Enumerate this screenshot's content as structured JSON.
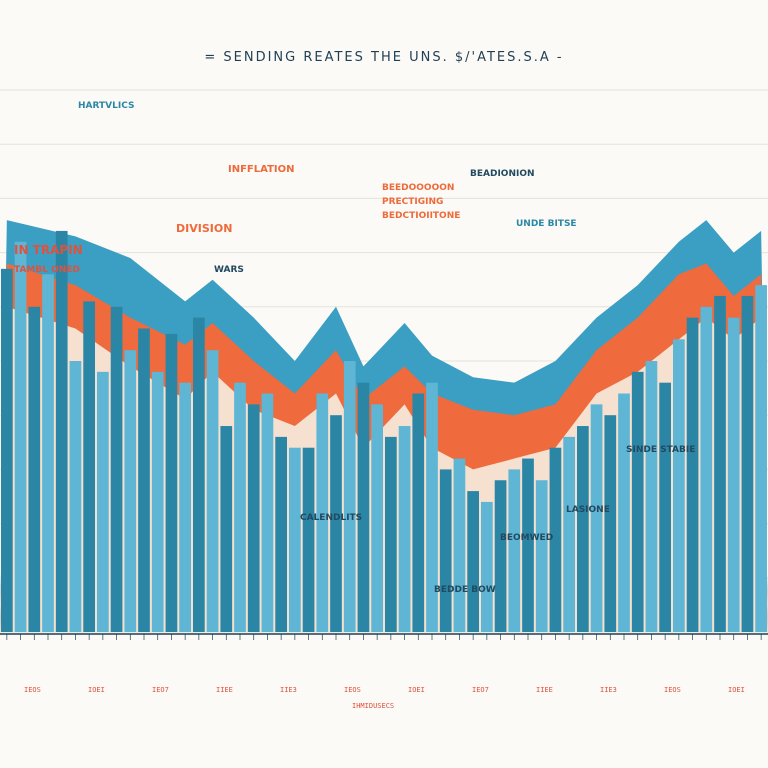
{
  "chart_data": {
    "type": "bar",
    "title": "= SENDING REATES THE UNS. $/'ATES.S.A -",
    "xlabel": "",
    "ylabel": "",
    "ylim": [
      0,
      100
    ],
    "categories_count": 56,
    "series": [
      {
        "name": "bars",
        "values": [
          67,
          72,
          60,
          66,
          74,
          50,
          61,
          48,
          60,
          52,
          56,
          48,
          55,
          46,
          58,
          52,
          38,
          46,
          42,
          44,
          36,
          34,
          34,
          44,
          40,
          50,
          46,
          42,
          36,
          38,
          44,
          46,
          30,
          32,
          26,
          24,
          28,
          30,
          32,
          28,
          34,
          36,
          38,
          42,
          40,
          44,
          48,
          50,
          46,
          54,
          58,
          60,
          62,
          58,
          62,
          64
        ]
      },
      {
        "name": "top band",
        "x": [
          0,
          5,
          9,
          13,
          15,
          18,
          21,
          24,
          26,
          29,
          31,
          34,
          37,
          40,
          43,
          46,
          49,
          51,
          53,
          55
        ],
        "values": [
          76,
          73,
          69,
          61,
          65,
          58,
          50,
          60,
          49,
          57,
          51,
          47,
          46,
          50,
          58,
          64,
          72,
          76,
          70,
          74
        ]
      },
      {
        "name": "orange band",
        "x": [
          0,
          5,
          9,
          13,
          15,
          18,
          21,
          24,
          26,
          29,
          31,
          34,
          37,
          40,
          43,
          46,
          49,
          51,
          53,
          55
        ],
        "values": [
          68,
          64,
          58,
          53,
          57,
          50,
          44,
          52,
          43,
          49,
          44,
          41,
          40,
          42,
          52,
          58,
          66,
          68,
          62,
          66
        ]
      },
      {
        "name": "cream band",
        "x": [
          0,
          5,
          9,
          13,
          15,
          18,
          21,
          24,
          26,
          29,
          31,
          34,
          37,
          40,
          43,
          46,
          49,
          51,
          53,
          55
        ],
        "values": [
          60,
          56,
          49,
          43,
          48,
          41,
          38,
          44,
          34,
          42,
          34,
          30,
          32,
          34,
          44,
          48,
          54,
          58,
          54,
          58
        ]
      }
    ],
    "annotations": [
      "HARTVLICS",
      "IN TRAPIN",
      "TAMBL ONED",
      "DIVISION",
      "WARS",
      "INFFLATION",
      "BEEDOOOOON",
      "PRECTIGING",
      "BEDCTIOIITONE",
      "BEADIONION",
      "CALENDLITS",
      "BEOMWED",
      "UNDE BITSE",
      "LASIONE",
      "SINDE STABIE",
      "BEDDE BOW"
    ],
    "tick_labels": [
      "IEOS",
      "IOEI",
      "IEO7",
      "IIEE",
      "IIE3",
      "IEOS",
      "IOEI",
      "IEO7",
      "IIEE",
      "IIE3",
      "IEOS",
      "IOEI"
    ],
    "bottom_note": "IHMIDUSECS"
  },
  "colors": {
    "bar_dark": "#2b86a6",
    "bar_light": "#5fb5d4",
    "band_top": "#3b9ec3",
    "band_orange": "#ef6a3c",
    "band_cream": "#f6e7d7",
    "text_dark": "#21495f",
    "accent_red": "#e0523b"
  }
}
